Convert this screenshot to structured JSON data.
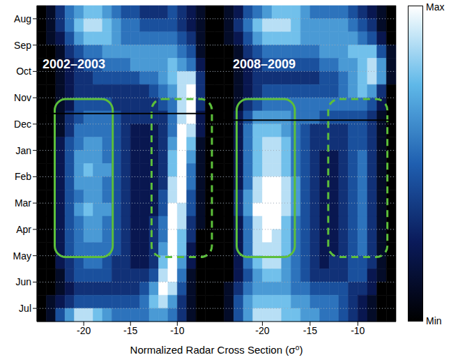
{
  "chart_data": {
    "type": "heatmap",
    "x_label": "Normalized Radar Cross Section (σ⁰)",
    "xlim": [
      -25,
      -6
    ],
    "xticks": [
      -20,
      -15,
      -10
    ],
    "ylim": [
      -0.5,
      11.5
    ],
    "yticks": [
      {
        "value": 0,
        "label": "Aug"
      },
      {
        "value": 1,
        "label": "Sep"
      },
      {
        "value": 2,
        "label": "Oct"
      },
      {
        "value": 3,
        "label": "Nov"
      },
      {
        "value": 4,
        "label": "Dec"
      },
      {
        "value": 5,
        "label": "Jan"
      },
      {
        "value": 6,
        "label": "Feb"
      },
      {
        "value": 7,
        "label": "Mar"
      },
      {
        "value": 8,
        "label": "Apr"
      },
      {
        "value": 9,
        "label": "May"
      },
      {
        "value": 10,
        "label": "Jun"
      },
      {
        "value": 11,
        "label": "Jul"
      }
    ],
    "grid": true,
    "x_bins": [
      -25,
      -24,
      -23,
      -22,
      -21,
      -20,
      -19,
      -18,
      -17,
      -16,
      -15,
      -14,
      -13,
      -12,
      -11,
      -10,
      -9,
      -8,
      -7,
      -6
    ],
    "y_bins": [
      -0.5,
      0,
      0.5,
      1,
      1.5,
      2,
      2.5,
      3,
      3.5,
      4,
      4.5,
      5,
      5.5,
      6,
      6.5,
      7,
      7.5,
      8,
      8.5,
      9,
      9.5,
      10,
      10.5,
      11,
      11.5
    ],
    "colorbar": {
      "range": [
        0,
        9
      ],
      "ticks": [
        {
          "value": 0,
          "label": "Min"
        },
        {
          "value": 9,
          "label": "Max"
        }
      ]
    },
    "panels": [
      {
        "title": "2002–2003",
        "reference_line": 3.6,
        "boxes": [
          {
            "x": [
              -23.1,
              -16.9
            ],
            "y": [
              3.05,
              9.05
            ],
            "line_style": "solid",
            "color": "#5cbf3a"
          },
          {
            "x": [
              -12.75,
              -6.3
            ],
            "y": [
              3.05,
              9.05
            ],
            "line_style": "dashed",
            "color": "#5cbf3a"
          }
        ],
        "cells": [
          [
            0,
            1,
            3,
            5,
            6,
            7,
            7,
            6,
            5,
            4,
            4,
            3,
            3,
            3,
            4,
            3,
            2,
            1,
            0
          ],
          [
            0,
            1,
            3,
            5,
            7,
            8,
            8,
            7,
            6,
            5,
            5,
            4,
            4,
            4,
            4,
            3,
            2,
            1,
            0
          ],
          [
            0,
            1,
            2,
            4,
            6,
            7,
            7,
            7,
            6,
            5,
            5,
            5,
            5,
            5,
            5,
            4,
            3,
            1,
            0
          ],
          [
            0,
            0,
            1,
            3,
            4,
            5,
            5,
            6,
            6,
            6,
            6,
            6,
            6,
            6,
            6,
            5,
            4,
            1,
            0
          ],
          [
            0,
            0,
            1,
            2,
            3,
            4,
            4,
            5,
            5,
            5,
            6,
            6,
            6,
            6,
            7,
            6,
            5,
            2,
            0
          ],
          [
            0,
            0,
            1,
            2,
            3,
            3,
            4,
            4,
            4,
            4,
            4,
            5,
            5,
            6,
            7,
            8,
            8,
            3,
            0
          ],
          [
            0,
            0,
            1,
            2,
            3,
            3,
            3,
            3,
            3,
            3,
            3,
            3,
            4,
            5,
            6,
            8,
            9,
            3,
            0
          ],
          [
            0,
            0,
            1,
            2,
            4,
            4,
            4,
            4,
            3,
            3,
            3,
            3,
            3,
            4,
            5,
            8,
            9,
            3,
            0
          ],
          [
            0,
            0,
            1,
            3,
            4,
            5,
            5,
            5,
            4,
            3,
            3,
            3,
            3,
            3,
            5,
            8,
            9,
            2,
            0
          ],
          [
            0,
            0,
            1,
            3,
            5,
            5,
            5,
            5,
            4,
            3,
            2,
            2,
            2,
            3,
            5,
            9,
            8,
            2,
            0
          ],
          [
            0,
            0,
            2,
            4,
            5,
            6,
            6,
            5,
            4,
            3,
            2,
            2,
            2,
            3,
            6,
            9,
            7,
            1,
            0
          ],
          [
            0,
            0,
            2,
            4,
            6,
            6,
            6,
            5,
            4,
            3,
            2,
            2,
            2,
            3,
            7,
            9,
            6,
            1,
            0
          ],
          [
            0,
            0,
            2,
            4,
            6,
            7,
            6,
            6,
            4,
            3,
            2,
            2,
            2,
            3,
            7,
            9,
            5,
            1,
            0
          ],
          [
            0,
            0,
            2,
            4,
            6,
            6,
            6,
            5,
            4,
            3,
            2,
            2,
            2,
            3,
            8,
            9,
            5,
            1,
            0
          ],
          [
            0,
            0,
            2,
            4,
            5,
            6,
            6,
            5,
            4,
            3,
            2,
            2,
            2,
            4,
            8,
            9,
            4,
            1,
            0
          ],
          [
            0,
            0,
            2,
            4,
            6,
            7,
            6,
            6,
            4,
            3,
            2,
            2,
            2,
            4,
            9,
            8,
            4,
            1,
            0
          ],
          [
            0,
            0,
            2,
            4,
            5,
            6,
            6,
            5,
            4,
            3,
            2,
            2,
            3,
            5,
            9,
            8,
            3,
            1,
            0
          ],
          [
            0,
            0,
            2,
            4,
            5,
            6,
            6,
            5,
            4,
            3,
            2,
            2,
            3,
            5,
            9,
            7,
            3,
            0,
            0
          ],
          [
            0,
            0,
            2,
            4,
            5,
            5,
            5,
            5,
            4,
            3,
            2,
            2,
            3,
            6,
            9,
            7,
            2,
            0,
            0
          ],
          [
            0,
            0,
            2,
            3,
            4,
            5,
            5,
            4,
            3,
            3,
            2,
            2,
            3,
            7,
            9,
            6,
            2,
            0,
            0
          ],
          [
            0,
            0,
            1,
            3,
            4,
            4,
            4,
            4,
            3,
            3,
            3,
            3,
            4,
            8,
            9,
            5,
            1,
            0,
            0
          ],
          [
            0,
            0,
            1,
            2,
            3,
            3,
            3,
            3,
            3,
            3,
            3,
            4,
            6,
            9,
            8,
            4,
            1,
            0,
            0
          ],
          [
            0,
            1,
            2,
            3,
            4,
            4,
            4,
            4,
            4,
            4,
            4,
            5,
            7,
            8,
            6,
            3,
            1,
            0,
            0
          ],
          [
            0,
            1,
            4,
            6,
            8,
            8,
            7,
            6,
            5,
            5,
            5,
            5,
            6,
            6,
            5,
            3,
            1,
            0,
            0
          ]
        ]
      },
      {
        "title": "2008–2009",
        "reference_line": 3.85,
        "boxes": [
          {
            "x": [
              -22.7,
              -16.6
            ],
            "y": [
              3.05,
              9.05
            ],
            "line_style": "solid",
            "color": "#5cbf3a"
          },
          {
            "x": [
              -13.1,
              -6.9
            ],
            "y": [
              3.05,
              9.05
            ],
            "line_style": "dashed",
            "color": "#5cbf3a"
          }
        ],
        "cells": [
          [
            0,
            1,
            2,
            4,
            5,
            6,
            7,
            7,
            7,
            6,
            5,
            5,
            5,
            5,
            4,
            3,
            2,
            1,
            0
          ],
          [
            0,
            1,
            3,
            5,
            7,
            8,
            8,
            8,
            7,
            6,
            6,
            6,
            6,
            6,
            5,
            4,
            3,
            1,
            0
          ],
          [
            0,
            1,
            2,
            4,
            6,
            7,
            7,
            7,
            7,
            6,
            6,
            6,
            6,
            6,
            6,
            5,
            4,
            2,
            0
          ],
          [
            0,
            0,
            1,
            3,
            4,
            5,
            5,
            5,
            5,
            5,
            5,
            6,
            6,
            6,
            7,
            7,
            7,
            4,
            1
          ],
          [
            0,
            0,
            1,
            2,
            3,
            4,
            4,
            4,
            4,
            4,
            4,
            5,
            5,
            6,
            6,
            7,
            8,
            6,
            1
          ],
          [
            0,
            0,
            1,
            2,
            3,
            3,
            3,
            3,
            3,
            3,
            3,
            4,
            4,
            5,
            6,
            7,
            8,
            6,
            1
          ],
          [
            0,
            0,
            1,
            2,
            3,
            4,
            4,
            4,
            4,
            4,
            4,
            4,
            4,
            5,
            6,
            7,
            6,
            3,
            0
          ],
          [
            0,
            0,
            1,
            3,
            4,
            5,
            5,
            5,
            5,
            5,
            5,
            5,
            5,
            5,
            5,
            5,
            4,
            2,
            0
          ],
          [
            0,
            0,
            2,
            4,
            6,
            6,
            6,
            6,
            5,
            5,
            5,
            4,
            4,
            4,
            4,
            4,
            3,
            1,
            0
          ],
          [
            0,
            0,
            2,
            5,
            7,
            7,
            7,
            6,
            5,
            4,
            3,
            3,
            3,
            3,
            4,
            4,
            3,
            1,
            0
          ],
          [
            0,
            0,
            2,
            5,
            7,
            8,
            8,
            7,
            5,
            4,
            3,
            3,
            3,
            3,
            4,
            4,
            3,
            1,
            0
          ],
          [
            0,
            0,
            2,
            5,
            7,
            8,
            8,
            7,
            5,
            4,
            3,
            2,
            2,
            3,
            4,
            5,
            3,
            1,
            0
          ],
          [
            0,
            0,
            2,
            5,
            7,
            8,
            8,
            7,
            5,
            4,
            3,
            2,
            2,
            3,
            4,
            5,
            3,
            1,
            0
          ],
          [
            0,
            0,
            2,
            5,
            8,
            9,
            9,
            8,
            6,
            4,
            3,
            2,
            2,
            3,
            4,
            5,
            3,
            1,
            0
          ],
          [
            0,
            0,
            3,
            6,
            8,
            9,
            9,
            8,
            6,
            4,
            3,
            2,
            2,
            3,
            4,
            5,
            3,
            1,
            0
          ],
          [
            0,
            0,
            3,
            6,
            9,
            9,
            9,
            8,
            6,
            4,
            3,
            2,
            2,
            3,
            4,
            5,
            3,
            1,
            0
          ],
          [
            0,
            0,
            2,
            5,
            8,
            9,
            9,
            7,
            5,
            4,
            3,
            2,
            2,
            3,
            4,
            5,
            3,
            1,
            0
          ],
          [
            0,
            0,
            2,
            5,
            8,
            9,
            8,
            7,
            5,
            4,
            3,
            2,
            2,
            3,
            4,
            5,
            3,
            1,
            0
          ],
          [
            0,
            0,
            2,
            5,
            8,
            8,
            8,
            7,
            5,
            4,
            3,
            2,
            2,
            3,
            4,
            5,
            3,
            1,
            0
          ],
          [
            0,
            0,
            2,
            5,
            7,
            8,
            8,
            6,
            5,
            4,
            3,
            2,
            3,
            3,
            4,
            4,
            3,
            1,
            0
          ],
          [
            0,
            0,
            2,
            4,
            6,
            7,
            7,
            6,
            5,
            4,
            3,
            3,
            3,
            3,
            4,
            4,
            2,
            1,
            0
          ],
          [
            0,
            1,
            3,
            5,
            6,
            6,
            6,
            6,
            5,
            5,
            4,
            4,
            4,
            4,
            3,
            3,
            2,
            0,
            0
          ],
          [
            0,
            1,
            4,
            6,
            7,
            7,
            7,
            7,
            6,
            6,
            5,
            5,
            5,
            4,
            3,
            2,
            1,
            0,
            0
          ],
          [
            0,
            1,
            4,
            6,
            8,
            8,
            8,
            7,
            7,
            6,
            6,
            5,
            5,
            4,
            3,
            2,
            1,
            0,
            0
          ]
        ]
      }
    ]
  }
}
